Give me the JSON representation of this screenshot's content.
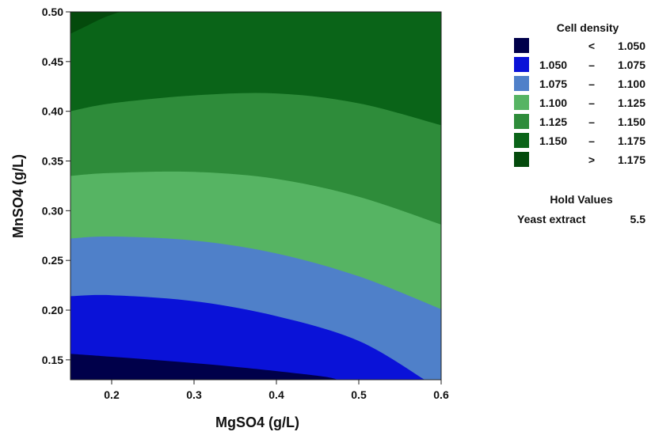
{
  "chart_data": {
    "type": "contour",
    "xlabel": "MgSO4 (g/L)",
    "ylabel": "MnSO4 (g/L)",
    "xlim": [
      0.15,
      0.6
    ],
    "ylim": [
      0.13,
      0.5
    ],
    "x_ticks": [
      "0.2",
      "0.3",
      "0.4",
      "0.5",
      "0.6"
    ],
    "y_ticks": [
      "0.15",
      "0.20",
      "0.25",
      "0.30",
      "0.35",
      "0.40",
      "0.45",
      "0.50"
    ],
    "legend": {
      "title": "Cell density",
      "placement": "right",
      "items": [
        {
          "op": "<",
          "low": "",
          "high": "1.050",
          "color": "#00004a"
        },
        {
          "op": "–",
          "low": "1.050",
          "high": "1.075",
          "color": "#0a12d8"
        },
        {
          "op": "–",
          "low": "1.075",
          "high": "1.100",
          "color": "#4f80c9"
        },
        {
          "op": "–",
          "low": "1.100",
          "high": "1.125",
          "color": "#56b463"
        },
        {
          "op": "–",
          "low": "1.125",
          "high": "1.150",
          "color": "#2e8c3a"
        },
        {
          "op": "–",
          "low": "1.150",
          "high": "1.175",
          "color": "#0a6418"
        },
        {
          "op": ">",
          "low": "",
          "high": "1.175",
          "color": "#044a0c"
        }
      ]
    },
    "contours": [
      {
        "level": 1.05,
        "points": [
          [
            0.15,
            0.156
          ],
          [
            0.25,
            0.15
          ],
          [
            0.35,
            0.143
          ],
          [
            0.45,
            0.134
          ],
          [
            0.475,
            0.13
          ]
        ]
      },
      {
        "level": 1.075,
        "points": [
          [
            0.15,
            0.214
          ],
          [
            0.2,
            0.215
          ],
          [
            0.3,
            0.209
          ],
          [
            0.4,
            0.194
          ],
          [
            0.5,
            0.169
          ],
          [
            0.58,
            0.13
          ]
        ]
      },
      {
        "level": 1.1,
        "points": [
          [
            0.15,
            0.272
          ],
          [
            0.2,
            0.274
          ],
          [
            0.3,
            0.27
          ],
          [
            0.4,
            0.257
          ],
          [
            0.5,
            0.234
          ],
          [
            0.6,
            0.201
          ]
        ]
      },
      {
        "level": 1.125,
        "points": [
          [
            0.15,
            0.335
          ],
          [
            0.2,
            0.338
          ],
          [
            0.3,
            0.339
          ],
          [
            0.4,
            0.332
          ],
          [
            0.5,
            0.314
          ],
          [
            0.6,
            0.286
          ]
        ]
      },
      {
        "level": 1.15,
        "points": [
          [
            0.15,
            0.4
          ],
          [
            0.2,
            0.408
          ],
          [
            0.3,
            0.416
          ],
          [
            0.4,
            0.418
          ],
          [
            0.5,
            0.408
          ],
          [
            0.6,
            0.386
          ]
        ]
      },
      {
        "level": 1.175,
        "points": [
          [
            0.15,
            0.478
          ],
          [
            0.17,
            0.486
          ],
          [
            0.19,
            0.494
          ],
          [
            0.21,
            0.5
          ]
        ]
      }
    ]
  },
  "hold_values": {
    "title": "Hold Values",
    "factor": "Yeast extract",
    "value": "5.5"
  }
}
